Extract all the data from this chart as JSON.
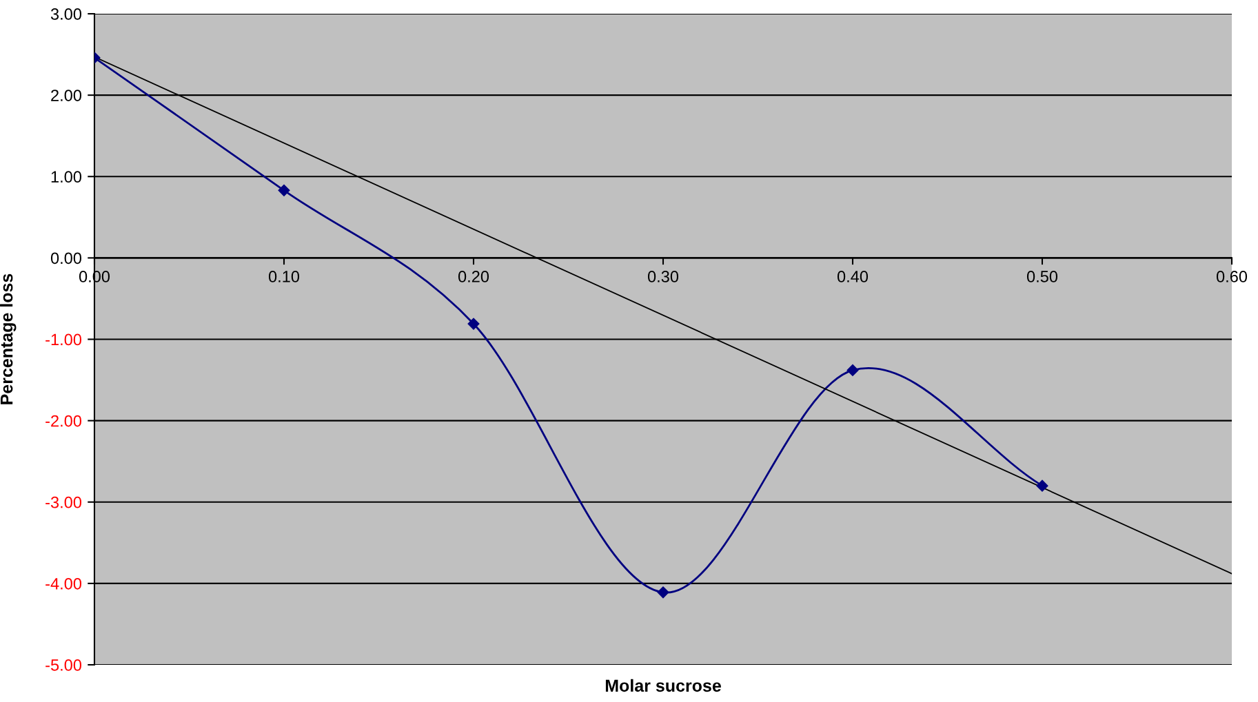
{
  "chart_data": {
    "type": "line",
    "xlabel": "Molar sucrose",
    "ylabel": "Percentage loss",
    "xlim": [
      0,
      0.6
    ],
    "xticks": [
      {
        "value": 0,
        "label": "0.00"
      },
      {
        "value": 0.1,
        "label": "0.10"
      },
      {
        "value": 0.2,
        "label": "0.20"
      },
      {
        "value": 0.3,
        "label": "0.30"
      },
      {
        "value": 0.4,
        "label": "0.40"
      },
      {
        "value": 0.5,
        "label": "0.50"
      },
      {
        "value": 0.6,
        "label": "0.60"
      }
    ],
    "ylim": [
      -5,
      3
    ],
    "yticks": [
      {
        "value": 3,
        "label": "3.00"
      },
      {
        "value": 2,
        "label": "2.00"
      },
      {
        "value": 1,
        "label": "1.00"
      },
      {
        "value": 0,
        "label": "0.00"
      },
      {
        "value": -1,
        "label": "-1.00"
      },
      {
        "value": -2,
        "label": "-2.00"
      },
      {
        "value": -3,
        "label": "-3.00"
      },
      {
        "value": -4,
        "label": "-4.00"
      },
      {
        "value": -5,
        "label": "-5.00"
      }
    ],
    "grid": "y",
    "legend": false,
    "series": [
      {
        "color": "#000080",
        "marker": "diamond",
        "x": [
          0,
          0.1,
          0.2,
          0.3,
          0.4,
          0.5
        ],
        "values": [
          2.46,
          0.83,
          -0.81,
          -4.11,
          -1.38,
          -2.8
        ]
      },
      {
        "color": "#000000",
        "marker": "none",
        "x": [
          0,
          0.6
        ],
        "values": [
          2.47,
          -3.88
        ]
      }
    ]
  }
}
